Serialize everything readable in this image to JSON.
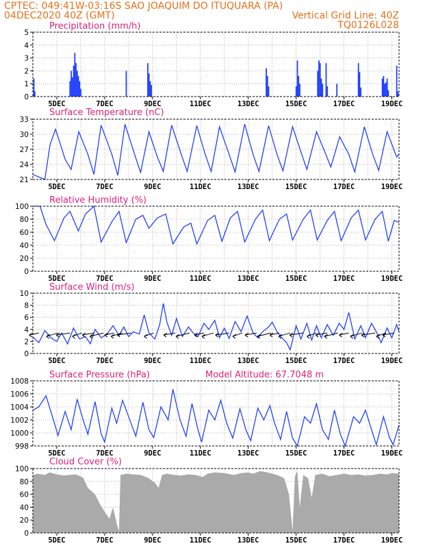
{
  "header": {
    "line1": "CPTEC:   049:41W-03:16S  SAO JOAQUIM DO ITUQUARA (PA)",
    "line2_left": "04DEC2020 40Z (GMT)",
    "line2_right": "Vertical Grid Line: 40Z",
    "line3_right": "TQ0126L028"
  },
  "colors": {
    "header": "#e8701a",
    "title": "#e0207a",
    "line": "#2040ff",
    "cloud": "#a9a9a9"
  },
  "x_axis": {
    "labels": [
      "5DEC",
      "7DEC",
      "9DEC",
      "11DEC",
      "13DEC",
      "15DEC",
      "17DEC",
      "19DEC"
    ],
    "label_day_index": [
      1,
      3,
      5,
      7,
      9,
      11,
      13,
      15
    ],
    "start_label": "04DEC",
    "days_span": 15.3
  },
  "chart_data": [
    {
      "type": "bar",
      "title": "Precipitation (mm/h)",
      "ylim": [
        0,
        5
      ],
      "yticks": [
        "0",
        "1",
        "2",
        "3",
        "4",
        "5"
      ],
      "points": [
        [
          0.04,
          1.4
        ],
        [
          0.08,
          0.4
        ],
        [
          1.55,
          1.2
        ],
        [
          1.6,
          2.0
        ],
        [
          1.65,
          1.5
        ],
        [
          1.7,
          2.4
        ],
        [
          1.75,
          3.4
        ],
        [
          1.8,
          2.6
        ],
        [
          1.85,
          2.0
        ],
        [
          1.9,
          1.6
        ],
        [
          1.95,
          1.2
        ],
        [
          2.0,
          0.6
        ],
        [
          3.9,
          2.0
        ],
        [
          4.8,
          2.6
        ],
        [
          4.85,
          1.8
        ],
        [
          4.9,
          1.2
        ],
        [
          4.95,
          0.9
        ],
        [
          9.75,
          2.2
        ],
        [
          9.8,
          1.6
        ],
        [
          9.85,
          0.8
        ],
        [
          11.0,
          0.8
        ],
        [
          11.05,
          2.8
        ],
        [
          11.1,
          1.6
        ],
        [
          11.15,
          1.0
        ],
        [
          11.9,
          2.0
        ],
        [
          11.95,
          2.8
        ],
        [
          12.0,
          2.6
        ],
        [
          12.05,
          1.4
        ],
        [
          12.1,
          1.0
        ],
        [
          12.25,
          2.6
        ],
        [
          12.3,
          0.8
        ],
        [
          12.7,
          1.0
        ],
        [
          13.6,
          2.6
        ],
        [
          13.65,
          1.9
        ],
        [
          13.7,
          0.7
        ],
        [
          14.6,
          1.4
        ],
        [
          14.65,
          1.6
        ],
        [
          14.7,
          1.0
        ],
        [
          14.75,
          1.1
        ],
        [
          14.8,
          1.4
        ],
        [
          14.85,
          0.5
        ],
        [
          15.2,
          2.4
        ],
        [
          15.25,
          0.4
        ]
      ]
    },
    {
      "type": "line",
      "title": "Surface Temperature (nC)",
      "ylim": [
        21,
        33
      ],
      "yticks": [
        "21",
        "24",
        "27",
        "30",
        "33"
      ],
      "points": [
        [
          0,
          22.0
        ],
        [
          0.3,
          21.4
        ],
        [
          0.5,
          21.0
        ],
        [
          0.72,
          28.0
        ],
        [
          0.95,
          31.0
        ],
        [
          1.35,
          25.0
        ],
        [
          1.6,
          23.0
        ],
        [
          1.92,
          30.5
        ],
        [
          2.3,
          26.0
        ],
        [
          2.55,
          22.0
        ],
        [
          2.85,
          31.8
        ],
        [
          3.3,
          26.0
        ],
        [
          3.55,
          21.8
        ],
        [
          3.85,
          32.0
        ],
        [
          4.25,
          26.0
        ],
        [
          4.5,
          22.4
        ],
        [
          4.85,
          30.5
        ],
        [
          5.2,
          25.5
        ],
        [
          5.45,
          22.6
        ],
        [
          5.8,
          31.8
        ],
        [
          6.2,
          26.0
        ],
        [
          6.45,
          22.6
        ],
        [
          6.85,
          31.7
        ],
        [
          7.2,
          26.0
        ],
        [
          7.45,
          22.6
        ],
        [
          7.8,
          31.5
        ],
        [
          8.2,
          26.0
        ],
        [
          8.45,
          22.5
        ],
        [
          8.85,
          32.0
        ],
        [
          9.2,
          26.0
        ],
        [
          9.45,
          22.6
        ],
        [
          9.85,
          31.7
        ],
        [
          10.2,
          26.0
        ],
        [
          10.45,
          22.7
        ],
        [
          10.85,
          31.5
        ],
        [
          11.2,
          26.5
        ],
        [
          11.45,
          23.0
        ],
        [
          11.85,
          30.5
        ],
        [
          12.2,
          26.5
        ],
        [
          12.45,
          23.5
        ],
        [
          12.82,
          29.5
        ],
        [
          13.2,
          26.0
        ],
        [
          13.45,
          22.5
        ],
        [
          13.85,
          31.5
        ],
        [
          14.2,
          26.0
        ],
        [
          14.45,
          22.8
        ],
        [
          14.8,
          30.5
        ],
        [
          15.2,
          25.5
        ],
        [
          15.3,
          26.0
        ]
      ]
    },
    {
      "type": "line",
      "title": "Relative Humidity (%)",
      "ylim": [
        0,
        100
      ],
      "yticks": [
        "0",
        "20",
        "40",
        "60",
        "80",
        "100"
      ],
      "points": [
        [
          0,
          100
        ],
        [
          0.3,
          100
        ],
        [
          0.55,
          72
        ],
        [
          0.9,
          47
        ],
        [
          1.3,
          82
        ],
        [
          1.55,
          92
        ],
        [
          1.9,
          62
        ],
        [
          2.2,
          88
        ],
        [
          2.55,
          100
        ],
        [
          2.85,
          45
        ],
        [
          3.3,
          76
        ],
        [
          3.6,
          92
        ],
        [
          3.9,
          44
        ],
        [
          4.3,
          80
        ],
        [
          4.6,
          86
        ],
        [
          4.85,
          66
        ],
        [
          5.2,
          82
        ],
        [
          5.55,
          88
        ],
        [
          5.85,
          42
        ],
        [
          6.3,
          68
        ],
        [
          6.6,
          74
        ],
        [
          6.85,
          42
        ],
        [
          7.3,
          78
        ],
        [
          7.6,
          86
        ],
        [
          7.9,
          46
        ],
        [
          8.25,
          82
        ],
        [
          8.55,
          92
        ],
        [
          8.85,
          45
        ],
        [
          9.3,
          80
        ],
        [
          9.6,
          94
        ],
        [
          9.88,
          47
        ],
        [
          10.3,
          80
        ],
        [
          10.6,
          88
        ],
        [
          10.85,
          48
        ],
        [
          11.3,
          80
        ],
        [
          11.6,
          94
        ],
        [
          11.88,
          48
        ],
        [
          12.3,
          78
        ],
        [
          12.6,
          92
        ],
        [
          12.88,
          47
        ],
        [
          13.3,
          82
        ],
        [
          13.6,
          94
        ],
        [
          13.9,
          48
        ],
        [
          14.3,
          80
        ],
        [
          14.6,
          92
        ],
        [
          14.85,
          46
        ],
        [
          15.1,
          78
        ],
        [
          15.3,
          75
        ]
      ]
    },
    {
      "type": "line",
      "title": "Surface Wind (m/s)",
      "ylim": [
        0,
        10
      ],
      "yticks": [
        "0",
        "2",
        "4",
        "6",
        "8",
        "10"
      ],
      "points": [
        [
          0,
          2.7
        ],
        [
          0.25,
          1.8
        ],
        [
          0.5,
          3.8
        ],
        [
          0.75,
          2.6
        ],
        [
          1.0,
          2.0
        ],
        [
          1.2,
          3.4
        ],
        [
          1.45,
          1.6
        ],
        [
          1.7,
          4.2
        ],
        [
          1.95,
          2.4
        ],
        [
          2.2,
          2.8
        ],
        [
          2.4,
          1.6
        ],
        [
          2.6,
          4.0
        ],
        [
          2.85,
          2.6
        ],
        [
          3.1,
          3.2
        ],
        [
          3.35,
          4.6
        ],
        [
          3.6,
          3.0
        ],
        [
          3.8,
          4.4
        ],
        [
          4.0,
          2.8
        ],
        [
          4.2,
          3.6
        ],
        [
          4.45,
          3.2
        ],
        [
          4.65,
          6.4
        ],
        [
          4.85,
          3.4
        ],
        [
          5.1,
          2.4
        ],
        [
          5.3,
          4.8
        ],
        [
          5.45,
          8.3
        ],
        [
          5.6,
          5.2
        ],
        [
          5.8,
          3.0
        ],
        [
          6.0,
          5.8
        ],
        [
          6.25,
          2.8
        ],
        [
          6.5,
          4.4
        ],
        [
          6.7,
          3.4
        ],
        [
          6.9,
          2.8
        ],
        [
          7.15,
          5.0
        ],
        [
          7.35,
          4.0
        ],
        [
          7.6,
          5.5
        ],
        [
          7.8,
          2.6
        ],
        [
          8.0,
          4.2
        ],
        [
          8.2,
          2.5
        ],
        [
          8.45,
          5.3
        ],
        [
          8.7,
          3.6
        ],
        [
          8.95,
          6.2
        ],
        [
          9.2,
          3.4
        ],
        [
          9.4,
          2.6
        ],
        [
          9.6,
          3.6
        ],
        [
          9.85,
          4.4
        ],
        [
          10.0,
          5.2
        ],
        [
          10.2,
          3.6
        ],
        [
          10.4,
          2.6
        ],
        [
          10.6,
          1.8
        ],
        [
          10.75,
          0.6
        ],
        [
          11.0,
          4.6
        ],
        [
          11.2,
          2.4
        ],
        [
          11.45,
          5.0
        ],
        [
          11.65,
          2.2
        ],
        [
          11.85,
          4.6
        ],
        [
          12.05,
          2.6
        ],
        [
          12.3,
          4.8
        ],
        [
          12.55,
          3.0
        ],
        [
          12.8,
          5.0
        ],
        [
          13.0,
          4.0
        ],
        [
          13.2,
          6.8
        ],
        [
          13.45,
          2.4
        ],
        [
          13.7,
          4.6
        ],
        [
          13.9,
          2.6
        ],
        [
          14.15,
          5.0
        ],
        [
          14.35,
          3.6
        ],
        [
          14.55,
          1.8
        ],
        [
          14.8,
          4.2
        ],
        [
          15.0,
          2.6
        ],
        [
          15.2,
          4.8
        ],
        [
          15.3,
          3.6
        ]
      ],
      "wind_arrows_x": [
        0.25,
        1.05,
        1.55,
        2.05,
        2.55,
        2.95,
        3.4,
        3.75,
        4.1,
        5.05,
        5.95,
        6.55,
        7.15,
        7.55,
        8.2,
        8.75,
        9.35,
        9.95,
        10.3,
        10.75,
        11.3,
        11.85,
        12.3,
        12.75,
        13.2,
        13.75,
        14.3,
        14.75,
        15.1
      ]
    },
    {
      "type": "line",
      "title": "Surface Pressure (hPa)",
      "subtitle": "Model Altitude: 67.7048 m",
      "ylim": [
        998,
        1008
      ],
      "yticks": [
        "998",
        "1000",
        "1002",
        "1004",
        "1006",
        "1008"
      ],
      "points": [
        [
          0,
          1003.5
        ],
        [
          0.25,
          1004.0
        ],
        [
          0.55,
          1005.7
        ],
        [
          0.9,
          1001.5
        ],
        [
          1.05,
          999.6
        ],
        [
          1.35,
          1003.3
        ],
        [
          1.6,
          1000.5
        ],
        [
          1.85,
          1005.2
        ],
        [
          2.1,
          1002.0
        ],
        [
          2.3,
          999.8
        ],
        [
          2.6,
          1004.8
        ],
        [
          2.85,
          999.9
        ],
        [
          3.0,
          998.6
        ],
        [
          3.3,
          1003.8
        ],
        [
          3.5,
          1001.5
        ],
        [
          3.75,
          1005.0
        ],
        [
          4.0,
          1002.5
        ],
        [
          4.3,
          999.5
        ],
        [
          4.6,
          1004.7
        ],
        [
          4.85,
          1000.5
        ],
        [
          5.05,
          999.3
        ],
        [
          5.35,
          1004.0
        ],
        [
          5.65,
          1002.0
        ],
        [
          5.85,
          1006.7
        ],
        [
          6.15,
          1002.0
        ],
        [
          6.4,
          999.5
        ],
        [
          6.65,
          1004.5
        ],
        [
          6.9,
          1000.5
        ],
        [
          7.05,
          998.6
        ],
        [
          7.35,
          1003.5
        ],
        [
          7.6,
          1002.0
        ],
        [
          7.85,
          1005.0
        ],
        [
          8.1,
          1001.5
        ],
        [
          8.35,
          999.2
        ],
        [
          8.65,
          1003.7
        ],
        [
          8.9,
          1000.5
        ],
        [
          9.1,
          998.8
        ],
        [
          9.4,
          1003.8
        ],
        [
          9.65,
          1002.0
        ],
        [
          9.9,
          1004.2
        ],
        [
          10.1,
          1001.5
        ],
        [
          10.35,
          999.0
        ],
        [
          10.6,
          1003.3
        ],
        [
          10.85,
          999.2
        ],
        [
          11.05,
          998.0
        ],
        [
          11.35,
          1002.5
        ],
        [
          11.6,
          1001.5
        ],
        [
          11.85,
          1004.5
        ],
        [
          12.1,
          1000.5
        ],
        [
          12.35,
          999.0
        ],
        [
          12.6,
          1003.5
        ],
        [
          12.85,
          999.8
        ],
        [
          13.05,
          998.0
        ],
        [
          13.4,
          1002.5
        ],
        [
          13.65,
          1001.5
        ],
        [
          13.9,
          1003.5
        ],
        [
          14.15,
          1000.5
        ],
        [
          14.35,
          998.2
        ],
        [
          14.65,
          1002.5
        ],
        [
          14.9,
          999.3
        ],
        [
          15.05,
          998.2
        ],
        [
          15.3,
          1001.2
        ]
      ]
    },
    {
      "type": "area",
      "title": "Cloud Cover (%)",
      "ylim": [
        0,
        100
      ],
      "yticks": [
        "0",
        "20",
        "40",
        "60",
        "80",
        "100"
      ],
      "points": [
        [
          0,
          90
        ],
        [
          0.2,
          92
        ],
        [
          0.5,
          90
        ],
        [
          0.7,
          94
        ],
        [
          1.0,
          91
        ],
        [
          1.3,
          89
        ],
        [
          1.5,
          90
        ],
        [
          1.8,
          91
        ],
        [
          2.1,
          86
        ],
        [
          2.3,
          70
        ],
        [
          2.6,
          60
        ],
        [
          2.8,
          45
        ],
        [
          3.0,
          33
        ],
        [
          3.2,
          22
        ],
        [
          3.35,
          40
        ],
        [
          3.5,
          15
        ],
        [
          3.6,
          3
        ],
        [
          3.66,
          90
        ],
        [
          3.9,
          92
        ],
        [
          4.2,
          91
        ],
        [
          4.5,
          90
        ],
        [
          4.8,
          86
        ],
        [
          5.1,
          78
        ],
        [
          5.25,
          70
        ],
        [
          5.4,
          90
        ],
        [
          5.6,
          92
        ],
        [
          5.9,
          90
        ],
        [
          6.2,
          89
        ],
        [
          6.5,
          91
        ],
        [
          6.8,
          90
        ],
        [
          7.1,
          87
        ],
        [
          7.3,
          92
        ],
        [
          7.6,
          94
        ],
        [
          8.0,
          93
        ],
        [
          8.4,
          90
        ],
        [
          8.7,
          93
        ],
        [
          9.0,
          94
        ],
        [
          9.2,
          92
        ],
        [
          9.5,
          96
        ],
        [
          9.8,
          94
        ],
        [
          10.2,
          90
        ],
        [
          10.5,
          85
        ],
        [
          10.7,
          60
        ],
        [
          10.85,
          3
        ],
        [
          10.95,
          88
        ],
        [
          11.05,
          96
        ],
        [
          11.15,
          40
        ],
        [
          11.3,
          90
        ],
        [
          11.5,
          85
        ],
        [
          11.65,
          55
        ],
        [
          11.8,
          90
        ],
        [
          12.1,
          92
        ],
        [
          12.4,
          88
        ],
        [
          12.7,
          90
        ],
        [
          13.0,
          92
        ],
        [
          13.3,
          90
        ],
        [
          13.6,
          91
        ],
        [
          13.9,
          89
        ],
        [
          14.2,
          90
        ],
        [
          14.5,
          92
        ],
        [
          14.8,
          91
        ],
        [
          15.0,
          93
        ],
        [
          15.3,
          92
        ]
      ]
    }
  ]
}
